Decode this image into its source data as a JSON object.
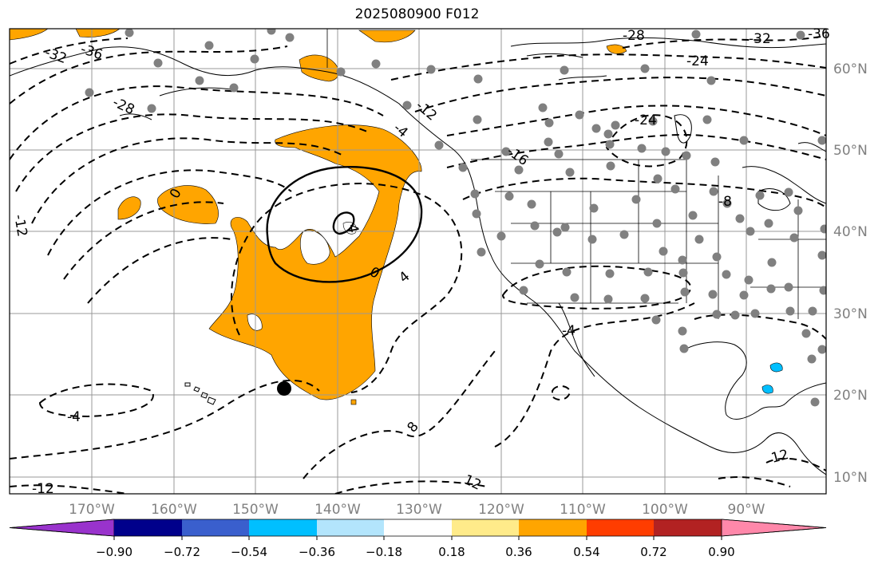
{
  "title": "2025080900 F012",
  "lon_labels": [
    "170°W",
    "160°W",
    "150°W",
    "140°W",
    "130°W",
    "120°W",
    "110°W",
    "100°W",
    "90°W"
  ],
  "lat_labels": [
    "60°N",
    "50°N",
    "40°N",
    "30°N",
    "20°N",
    "10°N"
  ],
  "colorbar": {
    "ticks": [
      "−0.90",
      "−0.72",
      "−0.54",
      "−0.36",
      "−0.18",
      "0.18",
      "0.36",
      "0.54",
      "0.72",
      "0.90"
    ],
    "colors": [
      "#9933cc",
      "#00008b",
      "#3a5fcd",
      "#00bfff",
      "#b3e5fc",
      "#ffffff",
      "#ffeb8a",
      "#ffa500",
      "#ff3d00",
      "#b22222",
      "#ff88aa"
    ]
  },
  "contour_labels": [
    "-32",
    "-36",
    "-28",
    "-12",
    "0",
    "0",
    "4",
    "4",
    "-4",
    "-4",
    "8",
    "-12",
    "12",
    "12",
    "-28",
    "-32",
    "-36",
    "-24",
    "-24",
    "-16",
    "-8",
    "-4",
    "-12"
  ]
}
